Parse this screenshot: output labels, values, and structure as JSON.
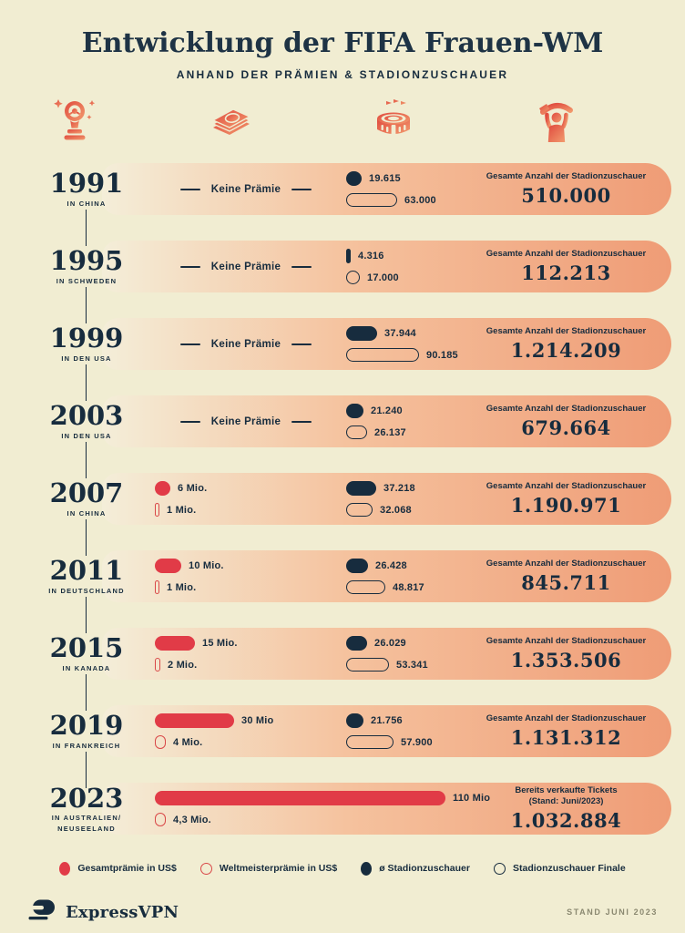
{
  "header": {
    "title": "Entwicklung der FIFA Frauen-WM",
    "subtitle": "ANHAND DER PRÄMIEN & STADIONZUSCHAUER"
  },
  "icons": {
    "trophy": "world-cup-trophy-icon",
    "money": "banknotes-icon",
    "stadium": "stadium-icon",
    "fan": "fan-with-scarf-icon"
  },
  "colors": {
    "background": "#f1edd2",
    "navy": "#172c3e",
    "red": "#e13b47",
    "salmon_end": "#ef9c76",
    "row_gradient_start": "#f4eed9",
    "footer_muted": "#8b8971"
  },
  "chart_data": {
    "type": "bar",
    "title": "Entwicklung der FIFA Frauen-WM",
    "subtitle": "ANHAND DER PRÄMIEN & STADIONZUSCHAUER",
    "prize_unit": "Mio. US$",
    "attendance_unit": "Zuschauer",
    "series_legend": [
      "Gesamtprämie in US$",
      "Weltmeisterprämie in US$",
      "ø Stadionzuschauer",
      "Stadionzuschauer Finale"
    ],
    "rows": [
      {
        "year": "1991",
        "location": [
          "IN CHINA"
        ],
        "no_prize_label": "Keine Prämie",
        "prize_total_mio": null,
        "prize_total_label": null,
        "prize_champion_mio": null,
        "prize_champion_label": null,
        "avg_attendance": 19615,
        "avg_attendance_label": "19.615",
        "final_attendance": 63000,
        "final_attendance_label": "63.000",
        "total_caption": [
          "Gesamte Anzahl der Stadionzuschauer"
        ],
        "total": 510000,
        "total_label": "510.000"
      },
      {
        "year": "1995",
        "location": [
          "IN SCHWEDEN"
        ],
        "no_prize_label": "Keine Prämie",
        "prize_total_mio": null,
        "prize_total_label": null,
        "prize_champion_mio": null,
        "prize_champion_label": null,
        "avg_attendance": 4316,
        "avg_attendance_label": "4.316",
        "final_attendance": 17000,
        "final_attendance_label": "17.000",
        "total_caption": [
          "Gesamte Anzahl der Stadionzuschauer"
        ],
        "total": 112213,
        "total_label": "112.213"
      },
      {
        "year": "1999",
        "location": [
          "IN DEN USA"
        ],
        "no_prize_label": "Keine Prämie",
        "prize_total_mio": null,
        "prize_total_label": null,
        "prize_champion_mio": null,
        "prize_champion_label": null,
        "avg_attendance": 37944,
        "avg_attendance_label": "37.944",
        "final_attendance": 90185,
        "final_attendance_label": "90.185",
        "total_caption": [
          "Gesamte Anzahl der Stadionzuschauer"
        ],
        "total": 1214209,
        "total_label": "1.214.209"
      },
      {
        "year": "2003",
        "location": [
          "IN DEN USA"
        ],
        "no_prize_label": "Keine Prämie",
        "prize_total_mio": null,
        "prize_total_label": null,
        "prize_champion_mio": null,
        "prize_champion_label": null,
        "avg_attendance": 21240,
        "avg_attendance_label": "21.240",
        "final_attendance": 26137,
        "final_attendance_label": "26.137",
        "total_caption": [
          "Gesamte Anzahl der Stadionzuschauer"
        ],
        "total": 679664,
        "total_label": "679.664"
      },
      {
        "year": "2007",
        "location": [
          "IN CHINA"
        ],
        "no_prize_label": null,
        "prize_total_mio": 6,
        "prize_total_label": "6 Mio.",
        "prize_champion_mio": 1,
        "prize_champion_label": "1 Mio.",
        "avg_attendance": 37218,
        "avg_attendance_label": "37.218",
        "final_attendance": 32068,
        "final_attendance_label": "32.068",
        "total_caption": [
          "Gesamte Anzahl der Stadionzuschauer"
        ],
        "total": 1190971,
        "total_label": "1.190.971"
      },
      {
        "year": "2011",
        "location": [
          "IN DEUTSCHLAND"
        ],
        "no_prize_label": null,
        "prize_total_mio": 10,
        "prize_total_label": "10 Mio.",
        "prize_champion_mio": 1,
        "prize_champion_label": "1 Mio.",
        "avg_attendance": 26428,
        "avg_attendance_label": "26.428",
        "final_attendance": 48817,
        "final_attendance_label": "48.817",
        "total_caption": [
          "Gesamte Anzahl der Stadionzuschauer"
        ],
        "total": 845711,
        "total_label": "845.711"
      },
      {
        "year": "2015",
        "location": [
          "IN KANADA"
        ],
        "no_prize_label": null,
        "prize_total_mio": 15,
        "prize_total_label": "15 Mio.",
        "prize_champion_mio": 2,
        "prize_champion_label": "2 Mio.",
        "avg_attendance": 26029,
        "avg_attendance_label": "26.029",
        "final_attendance": 53341,
        "final_attendance_label": "53.341",
        "total_caption": [
          "Gesamte Anzahl der Stadionzuschauer"
        ],
        "total": 1353506,
        "total_label": "1.353.506"
      },
      {
        "year": "2019",
        "location": [
          "IN FRANKREICH"
        ],
        "no_prize_label": null,
        "prize_total_mio": 30,
        "prize_total_label": "30 Mio",
        "prize_champion_mio": 4,
        "prize_champion_label": "4 Mio.",
        "avg_attendance": 21756,
        "avg_attendance_label": "21.756",
        "final_attendance": 57900,
        "final_attendance_label": "57.900",
        "total_caption": [
          "Gesamte Anzahl der Stadionzuschauer"
        ],
        "total": 1131312,
        "total_label": "1.131.312"
      },
      {
        "year": "2023",
        "location": [
          "IN AUSTRALIEN/",
          "NEUSEELAND"
        ],
        "no_prize_label": null,
        "prize_total_mio": 110,
        "prize_total_label": "110 Mio",
        "prize_champion_mio": 4.3,
        "prize_champion_label": "4,3 Mio.",
        "avg_attendance": null,
        "avg_attendance_label": null,
        "final_attendance": null,
        "final_attendance_label": null,
        "total_caption": [
          "Bereits verkaufte Tickets",
          "(Stand: Juni/2023)"
        ],
        "total": 1032884,
        "total_label": "1.032.884"
      }
    ]
  },
  "legend": [
    {
      "style": "red-filled",
      "label": "Gesamtprämie in US$"
    },
    {
      "style": "red-outline",
      "label": "Weltmeisterprämie in US$"
    },
    {
      "style": "navy-filled",
      "label": "ø Stadionzuschauer"
    },
    {
      "style": "navy-outline",
      "label": "Stadionzuschauer Finale"
    }
  ],
  "footer": {
    "brand": "ExpressVPN",
    "stand": "STAND JUNI 2023"
  }
}
